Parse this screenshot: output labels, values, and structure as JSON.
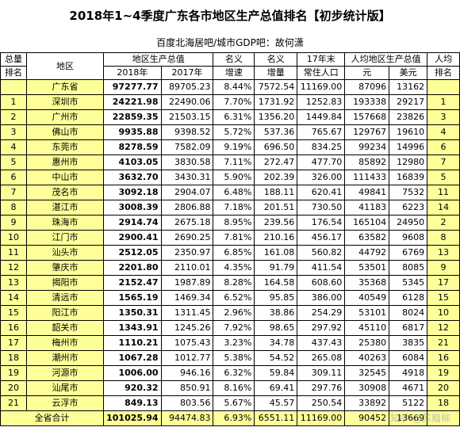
{
  "title": "2018年1~4季度广东各市地区生产总值排名【初步统计版】",
  "subtitle": "百度北海居吧/城市GDP吧：故何潇",
  "headers": {
    "rank_total_1": "总量",
    "rank_total_2": "排名",
    "region": "地区",
    "gdp_group": "地区生产总值",
    "y2018": "2018年",
    "y2017": "2017年",
    "nominal_1": "名义",
    "nominal_2": "增速",
    "nominal_inc_1": "名义",
    "nominal_inc_2": "增量",
    "pop_1": "17年末",
    "pop_2": "常住人口",
    "pc_group": "人均地区生产总值",
    "yuan": "元",
    "usd": "美元",
    "pc_rank_1": "人均",
    "pc_rank_2": "排名"
  },
  "rows": [
    {
      "rank": "",
      "region": "广东省",
      "y2018": "97277.77",
      "y2017": "89705.23",
      "growth": "8.44%",
      "increment": "7572.54",
      "population": "11169.00",
      "pc_yuan": "87096",
      "pc_usd": "13162",
      "pc_rank": ""
    },
    {
      "rank": "1",
      "region": "深圳市",
      "y2018": "24221.98",
      "y2017": "22490.06",
      "growth": "7.70%",
      "increment": "1731.92",
      "population": "1252.83",
      "pc_yuan": "193338",
      "pc_usd": "29217",
      "pc_rank": "1"
    },
    {
      "rank": "2",
      "region": "广州市",
      "y2018": "22859.35",
      "y2017": "21503.15",
      "growth": "6.31%",
      "increment": "1356.20",
      "population": "1449.84",
      "pc_yuan": "157668",
      "pc_usd": "23826",
      "pc_rank": "3"
    },
    {
      "rank": "3",
      "region": "佛山市",
      "y2018": "9935.88",
      "y2017": "9398.52",
      "growth": "5.72%",
      "increment": "537.36",
      "population": "765.67",
      "pc_yuan": "129767",
      "pc_usd": "19610",
      "pc_rank": "4"
    },
    {
      "rank": "4",
      "region": "东莞市",
      "y2018": "8278.59",
      "y2017": "7582.09",
      "growth": "9.19%",
      "increment": "696.50",
      "population": "834.25",
      "pc_yuan": "99234",
      "pc_usd": "14996",
      "pc_rank": "6"
    },
    {
      "rank": "5",
      "region": "惠州市",
      "y2018": "4103.05",
      "y2017": "3830.58",
      "growth": "7.11%",
      "increment": "272.47",
      "population": "477.70",
      "pc_yuan": "85892",
      "pc_usd": "12980",
      "pc_rank": "7"
    },
    {
      "rank": "6",
      "region": "中山市",
      "y2018": "3632.70",
      "y2017": "3430.31",
      "growth": "5.90%",
      "increment": "202.39",
      "population": "326.00",
      "pc_yuan": "111433",
      "pc_usd": "16839",
      "pc_rank": "5"
    },
    {
      "rank": "7",
      "region": "茂名市",
      "y2018": "3092.18",
      "y2017": "2904.07",
      "growth": "6.48%",
      "increment": "188.11",
      "population": "620.41",
      "pc_yuan": "49841",
      "pc_usd": "7532",
      "pc_rank": "11"
    },
    {
      "rank": "8",
      "region": "湛江市",
      "y2018": "3008.39",
      "y2017": "2806.88",
      "growth": "7.18%",
      "increment": "201.51",
      "population": "730.50",
      "pc_yuan": "41183",
      "pc_usd": "6223",
      "pc_rank": "14"
    },
    {
      "rank": "9",
      "region": "珠海市",
      "y2018": "2914.74",
      "y2017": "2675.18",
      "growth": "8.95%",
      "increment": "239.56",
      "population": "176.54",
      "pc_yuan": "165104",
      "pc_usd": "24950",
      "pc_rank": "2"
    },
    {
      "rank": "10",
      "region": "江门市",
      "y2018": "2900.41",
      "y2017": "2690.25",
      "growth": "7.81%",
      "increment": "210.16",
      "population": "456.17",
      "pc_yuan": "63582",
      "pc_usd": "9608",
      "pc_rank": "8"
    },
    {
      "rank": "11",
      "region": "汕头市",
      "y2018": "2512.05",
      "y2017": "2350.97",
      "growth": "6.85%",
      "increment": "161.08",
      "population": "560.82",
      "pc_yuan": "44792",
      "pc_usd": "6769",
      "pc_rank": "13"
    },
    {
      "rank": "12",
      "region": "肇庆市",
      "y2018": "2201.80",
      "y2017": "2110.01",
      "growth": "4.35%",
      "increment": "91.79",
      "population": "411.54",
      "pc_yuan": "53501",
      "pc_usd": "8085",
      "pc_rank": "9"
    },
    {
      "rank": "13",
      "region": "揭阳市",
      "y2018": "2152.47",
      "y2017": "1987.89",
      "growth": "8.28%",
      "increment": "164.58",
      "population": "608.60",
      "pc_yuan": "35368",
      "pc_usd": "5345",
      "pc_rank": "17"
    },
    {
      "rank": "14",
      "region": "清远市",
      "y2018": "1565.19",
      "y2017": "1469.34",
      "growth": "6.52%",
      "increment": "95.85",
      "population": "386.00",
      "pc_yuan": "40549",
      "pc_usd": "6128",
      "pc_rank": "15"
    },
    {
      "rank": "15",
      "region": "阳江市",
      "y2018": "1350.31",
      "y2017": "1311.45",
      "growth": "2.96%",
      "increment": "38.86",
      "population": "254.29",
      "pc_yuan": "53101",
      "pc_usd": "8024",
      "pc_rank": "10"
    },
    {
      "rank": "16",
      "region": "韶关市",
      "y2018": "1343.91",
      "y2017": "1245.26",
      "growth": "7.92%",
      "increment": "98.65",
      "population": "297.92",
      "pc_yuan": "45110",
      "pc_usd": "6817",
      "pc_rank": "12"
    },
    {
      "rank": "17",
      "region": "梅州市",
      "y2018": "1110.21",
      "y2017": "1075.43",
      "growth": "3.23%",
      "increment": "34.78",
      "population": "437.43",
      "pc_yuan": "25380",
      "pc_usd": "3835",
      "pc_rank": "21"
    },
    {
      "rank": "18",
      "region": "潮州市",
      "y2018": "1067.28",
      "y2017": "1012.77",
      "growth": "5.38%",
      "increment": "54.52",
      "population": "265.08",
      "pc_yuan": "40263",
      "pc_usd": "6084",
      "pc_rank": "16"
    },
    {
      "rank": "19",
      "region": "河源市",
      "y2018": "1006.00",
      "y2017": "946.16",
      "growth": "6.32%",
      "increment": "59.84",
      "population": "309.11",
      "pc_yuan": "32545",
      "pc_usd": "4918",
      "pc_rank": "19"
    },
    {
      "rank": "20",
      "region": "汕尾市",
      "y2018": "920.32",
      "y2017": "850.91",
      "growth": "8.16%",
      "increment": "69.41",
      "population": "297.76",
      "pc_yuan": "30908",
      "pc_usd": "4671",
      "pc_rank": "20"
    },
    {
      "rank": "21",
      "region": "云浮市",
      "y2018": "849.13",
      "y2017": "803.56",
      "growth": "5.67%",
      "increment": "45.57",
      "population": "250.54",
      "pc_yuan": "33892",
      "pc_usd": "5122",
      "pc_rank": "18"
    }
  ],
  "total": {
    "label": "全省合计",
    "y2018": "101025.94",
    "y2017": "94474.83",
    "growth": "6.93%",
    "increment": "6551.11",
    "population": "11169.00",
    "pc_yuan": "90452",
    "pc_usd": "13669"
  },
  "watermark": "知乎 @苏黯柳"
}
